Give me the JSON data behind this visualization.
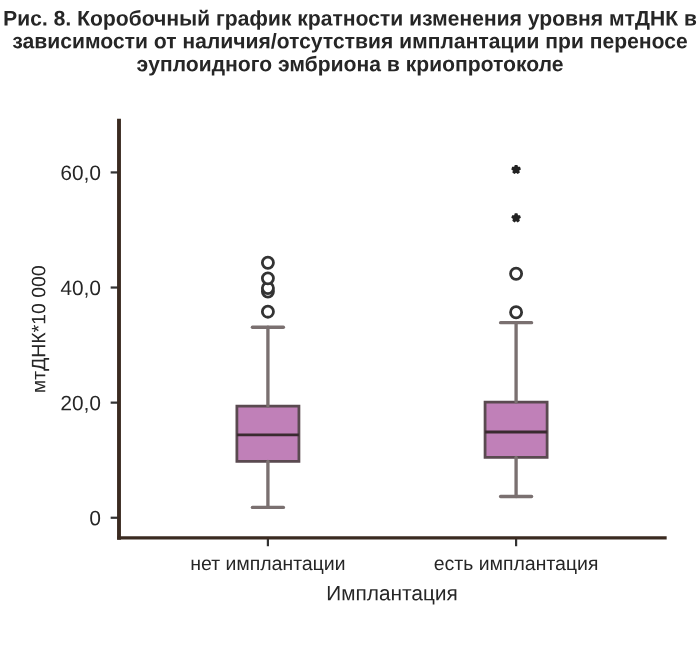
{
  "chart_data": {
    "type": "box",
    "title": "Рис. 8. Коробочный график кратности изменения уровня мтДНК в зависимости от наличия/отсутствия имплантации при переносе эуплоидного эмбриона в криопротоколе",
    "xlabel": "Имплантация",
    "ylabel": "мтДНК*10 000",
    "categories": [
      "нет имплантации",
      "есть имплантация"
    ],
    "color": "#c080b8",
    "boxes": [
      {
        "low": 1.8,
        "q1": 9.8,
        "median": 14.4,
        "q3": 19.4,
        "high": 33.1,
        "outliers": [
          35.8,
          39.3,
          39.9,
          41.6,
          44.3
        ]
      },
      {
        "low": 3.7,
        "q1": 10.5,
        "median": 14.9,
        "q3": 20.1,
        "high": 33.9,
        "outliers": [
          35.7,
          42.4,
          52.1,
          60.5
        ]
      }
    ],
    "ylim": [
      -3.5,
      69
    ],
    "yticks": [
      {
        "value": 0,
        "label": "0"
      },
      {
        "value": 20,
        "label": "20,0"
      },
      {
        "value": 40,
        "label": "40,0"
      },
      {
        "value": 60,
        "label": "60,0"
      }
    ],
    "grid": false
  }
}
